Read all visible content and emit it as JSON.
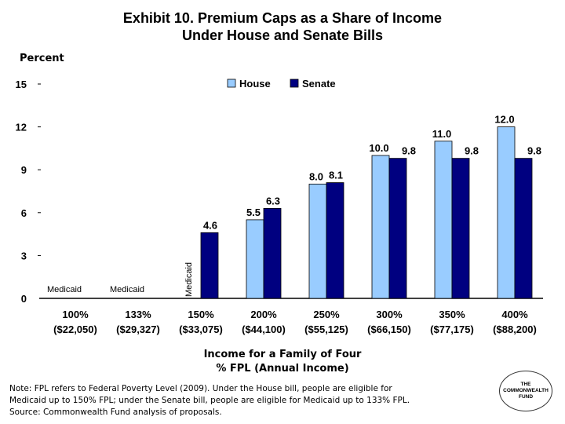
{
  "chart_data": {
    "type": "bar",
    "title_line1": "Exhibit 10. Premium Caps as a Share of Income",
    "title_line2": "Under House and Senate Bills",
    "ylabel": "Percent",
    "xlabel_line1": "Income for a Family of Four",
    "xlabel_line2": "% FPL (Annual Income)",
    "ylim": [
      0,
      15
    ],
    "yticks": [
      "0",
      "3",
      "6",
      "9",
      "12",
      "15"
    ],
    "legend_position": "top-right",
    "categories": [
      {
        "pct": "100%",
        "income": "($22,050)"
      },
      {
        "pct": "133%",
        "income": "($29,327)"
      },
      {
        "pct": "150%",
        "income": "($33,075)"
      },
      {
        "pct": "200%",
        "income": "($44,100)"
      },
      {
        "pct": "250%",
        "income": "($55,125)"
      },
      {
        "pct": "300%",
        "income": "($66,150)"
      },
      {
        "pct": "350%",
        "income": "($77,175)"
      },
      {
        "pct": "400%",
        "income": "($88,200)"
      }
    ],
    "series": [
      {
        "name": "House",
        "color": "#99ccff",
        "values": [
          null,
          null,
          null,
          5.5,
          8.0,
          10.0,
          11.0,
          12.0
        ],
        "labels": [
          "",
          "",
          "",
          "5.5",
          "8.0",
          "10.0",
          "11.0",
          "12.0"
        ]
      },
      {
        "name": "Senate",
        "color": "#000080",
        "values": [
          null,
          null,
          4.6,
          6.3,
          8.1,
          9.8,
          9.8,
          9.8
        ],
        "labels": [
          "",
          "",
          "4.6",
          "6.3",
          "8.1",
          "9.8",
          "9.8",
          "9.8"
        ]
      }
    ],
    "annotations": [
      {
        "category": 0,
        "text": "Medicaid",
        "rotated": false
      },
      {
        "category": 1,
        "text": "Medicaid",
        "rotated": false
      },
      {
        "category": 2,
        "text": "Medicaid",
        "rotated": true
      }
    ]
  },
  "note": {
    "line1": "Note: FPL refers to Federal Poverty Level (2009). Under the House bill, people are eligible for",
    "line2": "Medicaid up to 150% FPL; under the Senate bill, people are eligible for Medicaid up to 133% FPL.",
    "line3": "Source: Commonwealth Fund analysis of proposals."
  },
  "logo": {
    "text": "THE\nCOMMONWEALTH\nFUND"
  }
}
